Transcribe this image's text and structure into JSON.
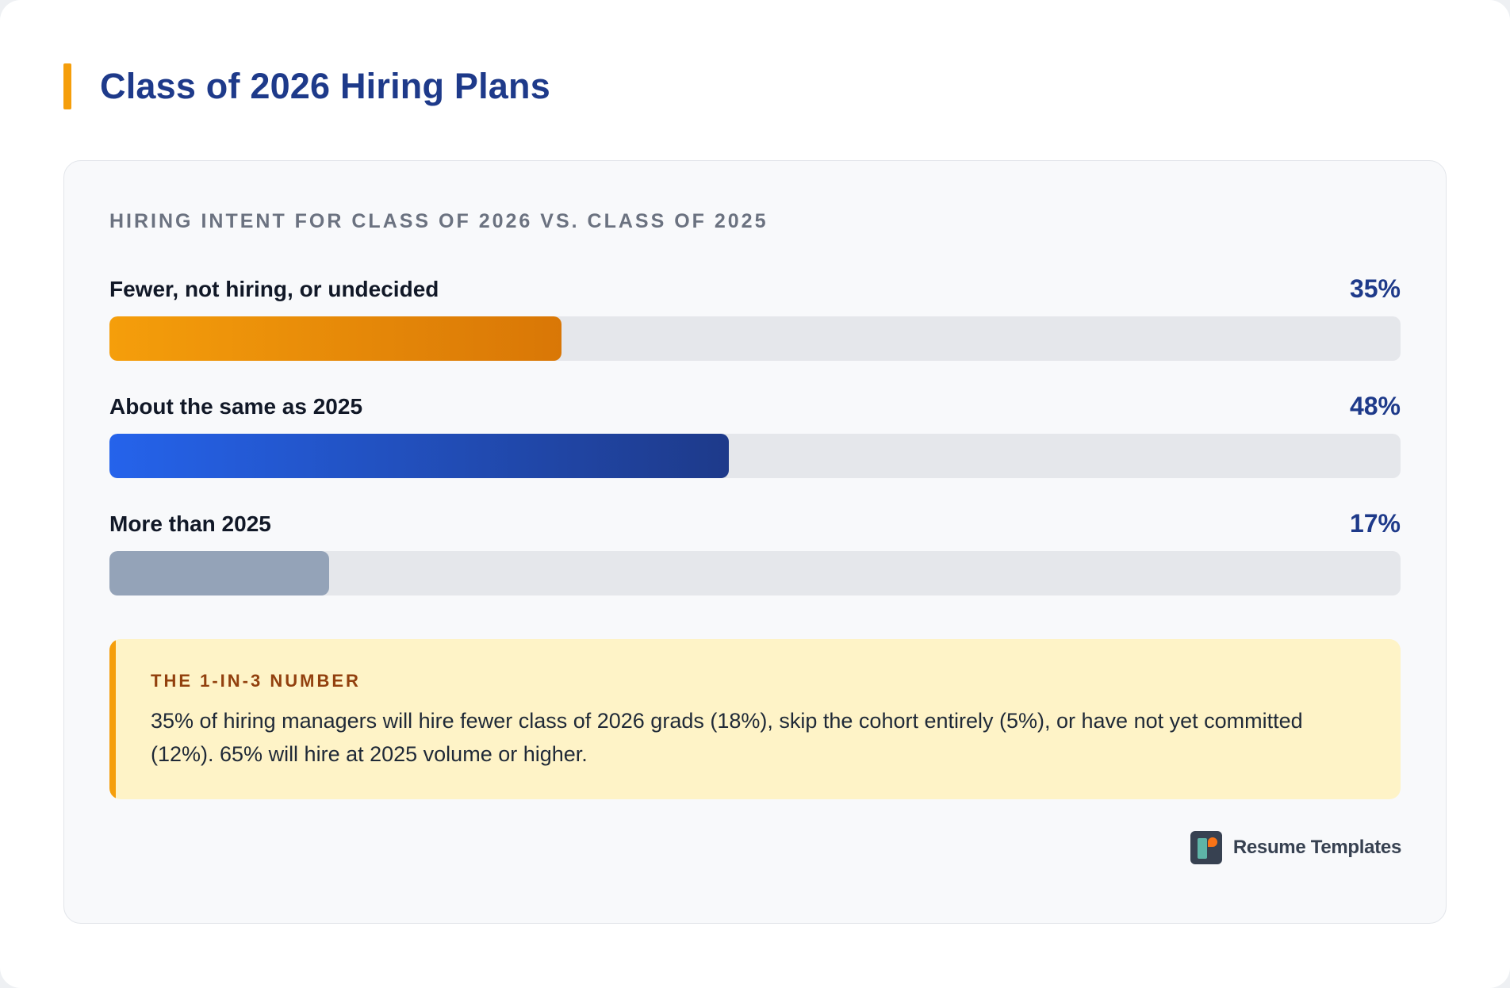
{
  "page": {
    "title": "Class of 2026 Hiring Plans"
  },
  "chart_data": {
    "type": "bar",
    "orientation": "horizontal",
    "title": "HIRING INTENT FOR CLASS OF 2026 VS. CLASS OF 2025",
    "categories": [
      "Fewer, not hiring, or undecided",
      "About the same as 2025",
      "More than 2025"
    ],
    "values": [
      35,
      48,
      17
    ],
    "value_labels": [
      "35%",
      "48%",
      "17%"
    ],
    "xlim": [
      0,
      100
    ],
    "colors": [
      "#f59e0b",
      "#2563eb",
      "#94a3b8"
    ],
    "grid": false
  },
  "callout": {
    "heading": "THE 1-IN-3 NUMBER",
    "text": "35% of hiring managers will hire fewer class of 2026 grads (18%), skip the cohort entirely (5%), or have not yet committed (12%). 65% will hire at 2025 volume or higher."
  },
  "brand": {
    "name": "Resume Templates",
    "icon": "resume-templates-logo-icon"
  }
}
